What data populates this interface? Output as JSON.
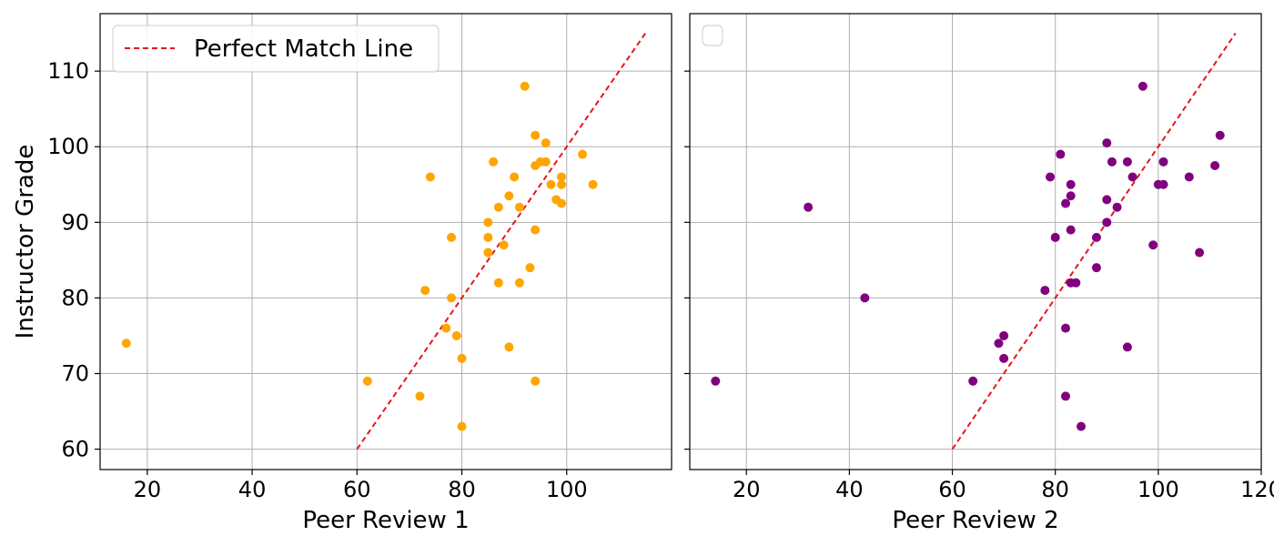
{
  "chart_data": [
    {
      "type": "scatter",
      "title": "",
      "xlabel": "Peer Review 1",
      "ylabel": "Instructor Grade",
      "xlim": [
        11,
        120
      ],
      "ylim": [
        57.3,
        117.6
      ],
      "xticks": [
        20,
        40,
        60,
        80,
        100
      ],
      "yticks": [
        60,
        70,
        80,
        90,
        100,
        110
      ],
      "grid": true,
      "legend": {
        "placement": "top-left",
        "entries": [
          "Perfect Match Line"
        ]
      },
      "reference_line": {
        "name": "Perfect Match Line",
        "style": "dashed",
        "color": "#e8141b",
        "x": [
          60,
          115
        ],
        "y": [
          60,
          115
        ]
      },
      "series": [
        {
          "color": "#ffa500",
          "points": [
            [
              16,
              74
            ],
            [
              62,
              69
            ],
            [
              72,
              67
            ],
            [
              73,
              81
            ],
            [
              74,
              96
            ],
            [
              77,
              76
            ],
            [
              78,
              88
            ],
            [
              78,
              80
            ],
            [
              79,
              75
            ],
            [
              80,
              72
            ],
            [
              80,
              63
            ],
            [
              85,
              90
            ],
            [
              85,
              88
            ],
            [
              85,
              86
            ],
            [
              86,
              98
            ],
            [
              87,
              92
            ],
            [
              87,
              82
            ],
            [
              88,
              87
            ],
            [
              89,
              93.5
            ],
            [
              89,
              73.5
            ],
            [
              90,
              96
            ],
            [
              91,
              92
            ],
            [
              91,
              82
            ],
            [
              92,
              108
            ],
            [
              93,
              84
            ],
            [
              94,
              101.5
            ],
            [
              94,
              97.5
            ],
            [
              94,
              89
            ],
            [
              94,
              69
            ],
            [
              95,
              98
            ],
            [
              96,
              100.5
            ],
            [
              96,
              98
            ],
            [
              97,
              95
            ],
            [
              98,
              93
            ],
            [
              99,
              96
            ],
            [
              99,
              95
            ],
            [
              99,
              92.5
            ],
            [
              103,
              99
            ],
            [
              105,
              95
            ]
          ]
        }
      ]
    },
    {
      "type": "scatter",
      "title": "",
      "xlabel": "Peer Review 2",
      "ylabel": "",
      "xlim": [
        9,
        120
      ],
      "ylim": [
        57.3,
        117.6
      ],
      "xticks": [
        20,
        40,
        60,
        80,
        100,
        120
      ],
      "yticks": [
        60,
        70,
        80,
        90,
        100,
        110
      ],
      "grid": true,
      "legend": {
        "placement": "top-left",
        "entries": []
      },
      "reference_line": {
        "style": "dashed",
        "color": "#e8141b",
        "x": [
          60,
          115
        ],
        "y": [
          60,
          115
        ]
      },
      "series": [
        {
          "color": "#800080",
          "points": [
            [
              14,
              69
            ],
            [
              32,
              92
            ],
            [
              43,
              80
            ],
            [
              64,
              69
            ],
            [
              69,
              74
            ],
            [
              70,
              75
            ],
            [
              70,
              72
            ],
            [
              78,
              81
            ],
            [
              79,
              96
            ],
            [
              80,
              88
            ],
            [
              81,
              99
            ],
            [
              82,
              92.5
            ],
            [
              82,
              76
            ],
            [
              82,
              67
            ],
            [
              83,
              95
            ],
            [
              83,
              93.5
            ],
            [
              83,
              89
            ],
            [
              83,
              82
            ],
            [
              84,
              82
            ],
            [
              85,
              63
            ],
            [
              88,
              88
            ],
            [
              88,
              84
            ],
            [
              90,
              100.5
            ],
            [
              90,
              93
            ],
            [
              90,
              90
            ],
            [
              91,
              98
            ],
            [
              92,
              92
            ],
            [
              94,
              98
            ],
            [
              94,
              73.5
            ],
            [
              95,
              96
            ],
            [
              97,
              108
            ],
            [
              99,
              87
            ],
            [
              100,
              95
            ],
            [
              101,
              98
            ],
            [
              101,
              95
            ],
            [
              106,
              96
            ],
            [
              108,
              86
            ],
            [
              111,
              97.5
            ],
            [
              112,
              101.5
            ]
          ]
        }
      ]
    }
  ]
}
